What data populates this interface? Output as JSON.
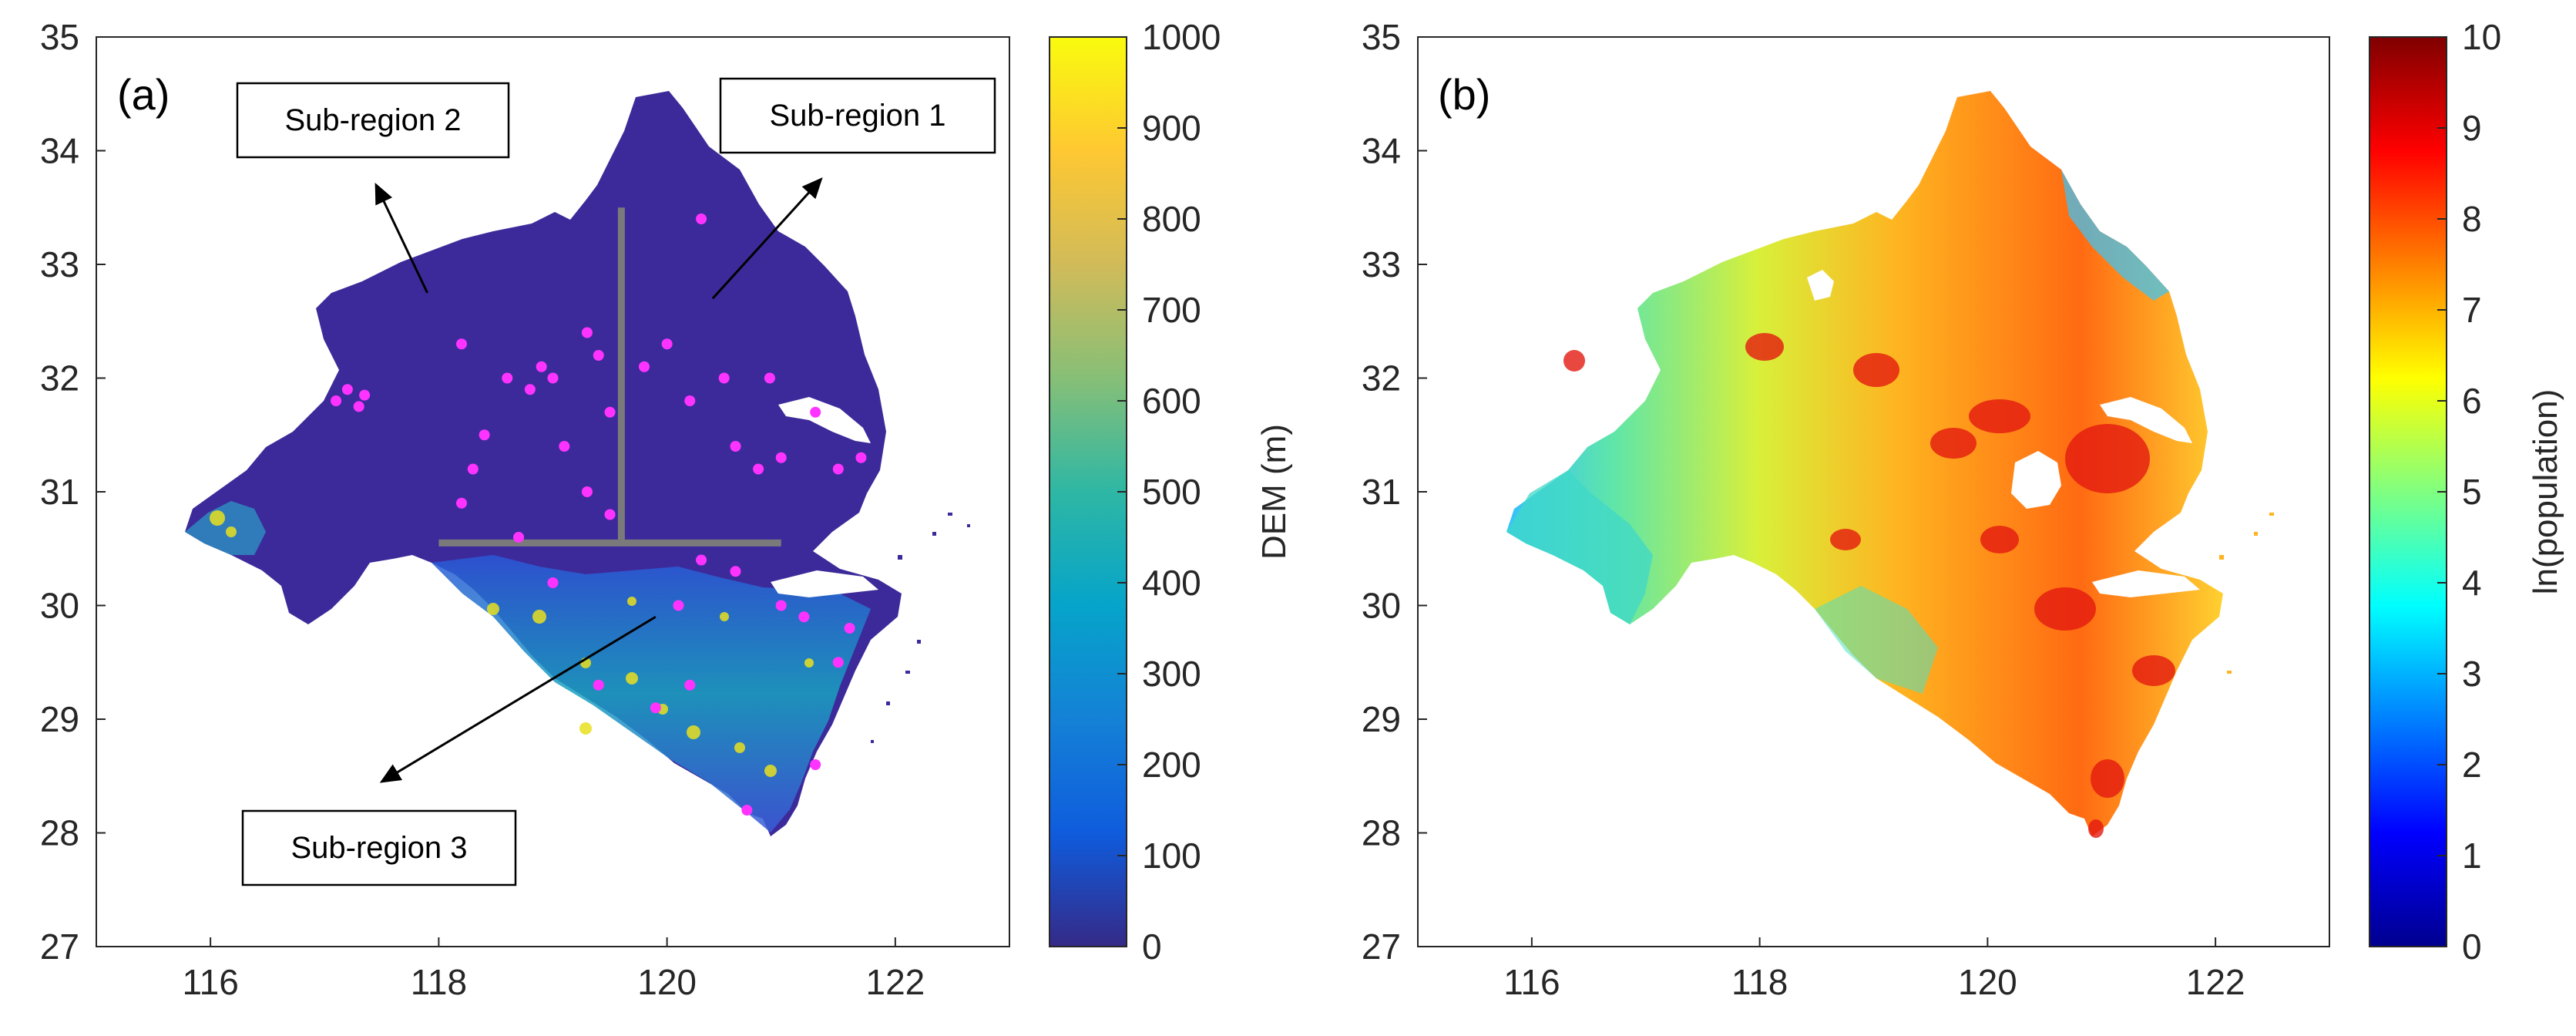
{
  "figure": {
    "panel_a": {
      "label": "(a)",
      "x_ticks": [
        "116",
        "118",
        "120",
        "122"
      ],
      "y_ticks": [
        "27",
        "28",
        "29",
        "30",
        "31",
        "32",
        "33",
        "34",
        "35"
      ],
      "annotations": [
        "Sub-region 2",
        "Sub-region 1",
        "Sub-region 3"
      ],
      "colorbar": {
        "label": "DEM (m)",
        "ticks": [
          "0",
          "100",
          "200",
          "300",
          "400",
          "500",
          "600",
          "700",
          "800",
          "900",
          "1000"
        ],
        "colors": [
          "#352a87",
          "#0f5cdd",
          "#1481d6",
          "#06a4ca",
          "#2eb7a4",
          "#87bf77",
          "#d1bb59",
          "#fec832",
          "#f9fb0e"
        ]
      }
    },
    "panel_b": {
      "label": "(b)",
      "x_ticks": [
        "116",
        "118",
        "120",
        "122"
      ],
      "y_ticks": [
        "27",
        "28",
        "29",
        "30",
        "31",
        "32",
        "33",
        "34",
        "35"
      ],
      "colorbar": {
        "label": "ln(population)",
        "ticks": [
          "0",
          "1",
          "2",
          "3",
          "4",
          "5",
          "6",
          "7",
          "8",
          "9",
          "10"
        ],
        "colors": [
          "#00008f",
          "#0000ff",
          "#0080ff",
          "#00ffff",
          "#80ff80",
          "#ffff00",
          "#ff8000",
          "#ff0000",
          "#800000"
        ]
      }
    }
  },
  "chart_data": [
    {
      "type": "heatmap",
      "title": "(a)",
      "xlabel": "",
      "ylabel": "",
      "xlim": [
        115,
        123
      ],
      "ylim": [
        27,
        35
      ],
      "colorbar_label": "DEM (m)",
      "colorbar_range": [
        0,
        1000
      ],
      "dividers": [
        {
          "from": [
            119.6,
            33.5
          ],
          "to": [
            119.6,
            30.55
          ]
        },
        {
          "from": [
            118.0,
            30.55
          ],
          "to": [
            121.0,
            30.55
          ]
        }
      ],
      "arrows": [
        {
          "label": "Sub-region 2",
          "from": [
            117.9,
            32.75
          ],
          "to": [
            117.45,
            33.7
          ]
        },
        {
          "label": "Sub-region 1",
          "from": [
            120.4,
            32.7
          ],
          "to": [
            121.35,
            33.75
          ]
        },
        {
          "label": "Sub-region 3",
          "from": [
            119.9,
            29.9
          ],
          "to": [
            117.5,
            28.45
          ]
        }
      ],
      "station_points": [
        [
          117.1,
          31.8
        ],
        [
          117.2,
          31.9
        ],
        [
          117.3,
          31.75
        ],
        [
          117.35,
          31.85
        ],
        [
          118.2,
          32.3
        ],
        [
          118.4,
          31.5
        ],
        [
          118.6,
          32.0
        ],
        [
          118.8,
          31.9
        ],
        [
          118.9,
          32.1
        ],
        [
          118.3,
          31.2
        ],
        [
          118.2,
          30.9
        ],
        [
          118.7,
          30.6
        ],
        [
          119.0,
          32.0
        ],
        [
          119.1,
          31.4
        ],
        [
          119.3,
          32.4
        ],
        [
          119.4,
          32.2
        ],
        [
          119.5,
          31.7
        ],
        [
          119.3,
          31.0
        ],
        [
          119.5,
          30.8
        ],
        [
          119.0,
          30.2
        ],
        [
          119.8,
          32.1
        ],
        [
          120.0,
          32.3
        ],
        [
          120.2,
          31.8
        ],
        [
          120.3,
          33.4
        ],
        [
          120.5,
          32.0
        ],
        [
          120.6,
          31.4
        ],
        [
          120.8,
          31.2
        ],
        [
          120.9,
          32.0
        ],
        [
          121.0,
          31.3
        ],
        [
          121.3,
          31.7
        ],
        [
          121.5,
          31.2
        ],
        [
          121.7,
          31.3
        ],
        [
          120.3,
          30.4
        ],
        [
          120.6,
          30.3
        ],
        [
          121.0,
          30.0
        ],
        [
          120.2,
          29.3
        ],
        [
          121.2,
          29.9
        ],
        [
          121.5,
          29.5
        ],
        [
          121.3,
          28.6
        ],
        [
          120.7,
          28.2
        ],
        [
          119.9,
          29.1
        ],
        [
          119.4,
          29.3
        ],
        [
          121.6,
          29.8
        ],
        [
          120.1,
          30.0
        ]
      ]
    },
    {
      "type": "heatmap",
      "title": "(b)",
      "xlabel": "",
      "ylabel": "",
      "xlim": [
        115,
        123
      ],
      "ylim": [
        27,
        35
      ],
      "colorbar_label": "ln(population)",
      "colorbar_range": [
        0,
        10
      ]
    }
  ]
}
